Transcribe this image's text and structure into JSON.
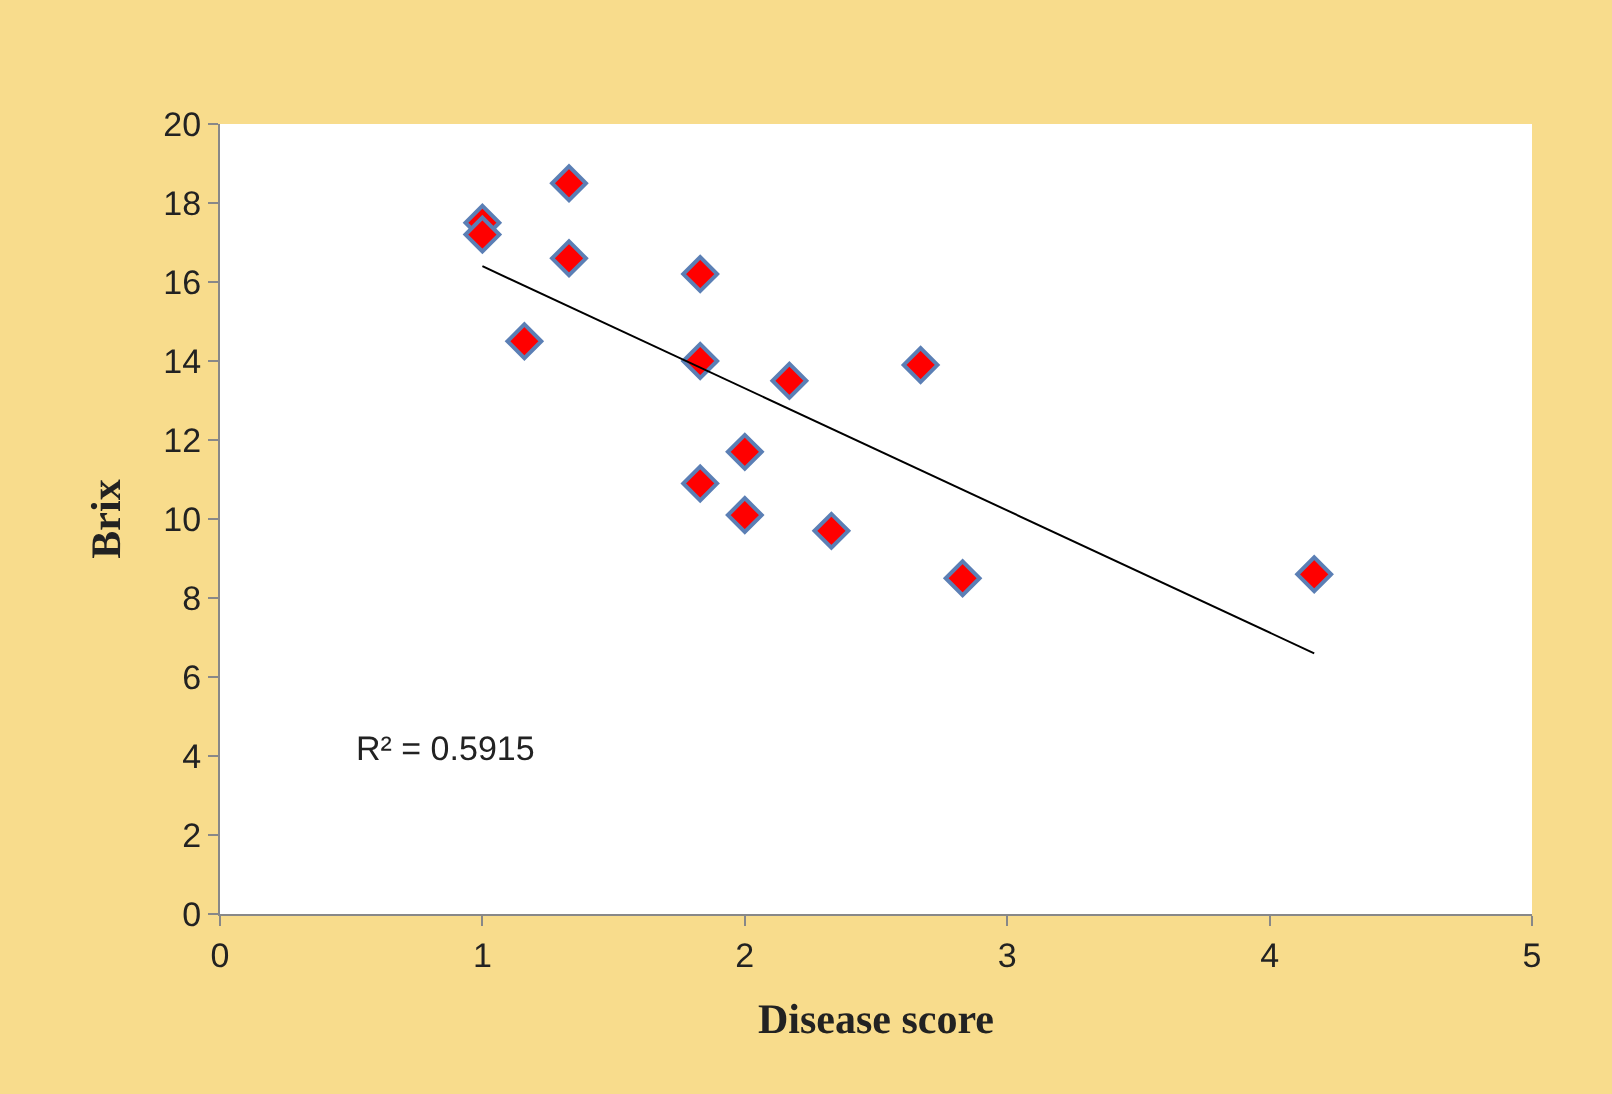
{
  "chart_data": {
    "type": "scatter",
    "xlabel": "Disease score",
    "ylabel": "Brix",
    "x": [
      1.0,
      1.0,
      1.16,
      1.33,
      1.33,
      1.83,
      1.83,
      1.83,
      2.0,
      2.0,
      2.17,
      2.33,
      2.67,
      2.83,
      4.17
    ],
    "series": [
      {
        "color": "#ff0000",
        "values": [
          17.5,
          17.2,
          14.5,
          18.5,
          16.6,
          16.2,
          14.0,
          10.9,
          11.7,
          10.1,
          13.5,
          9.7,
          13.9,
          8.5,
          8.6
        ],
        "marker": "diamond"
      },
      {
        "type": "line",
        "color": "#000000",
        "x": [
          1.0,
          4.17
        ],
        "values": [
          16.4,
          6.6
        ],
        "marker": "none"
      }
    ],
    "xlim": [
      0,
      5
    ],
    "xticks": [
      0,
      1,
      2,
      3,
      4,
      5
    ],
    "ylim": [
      0,
      20
    ],
    "yticks": [
      0,
      2,
      4,
      6,
      8,
      10,
      12,
      14,
      16,
      18,
      20
    ],
    "annotations": [
      "R² = 0.5915"
    ],
    "legend": false
  }
}
